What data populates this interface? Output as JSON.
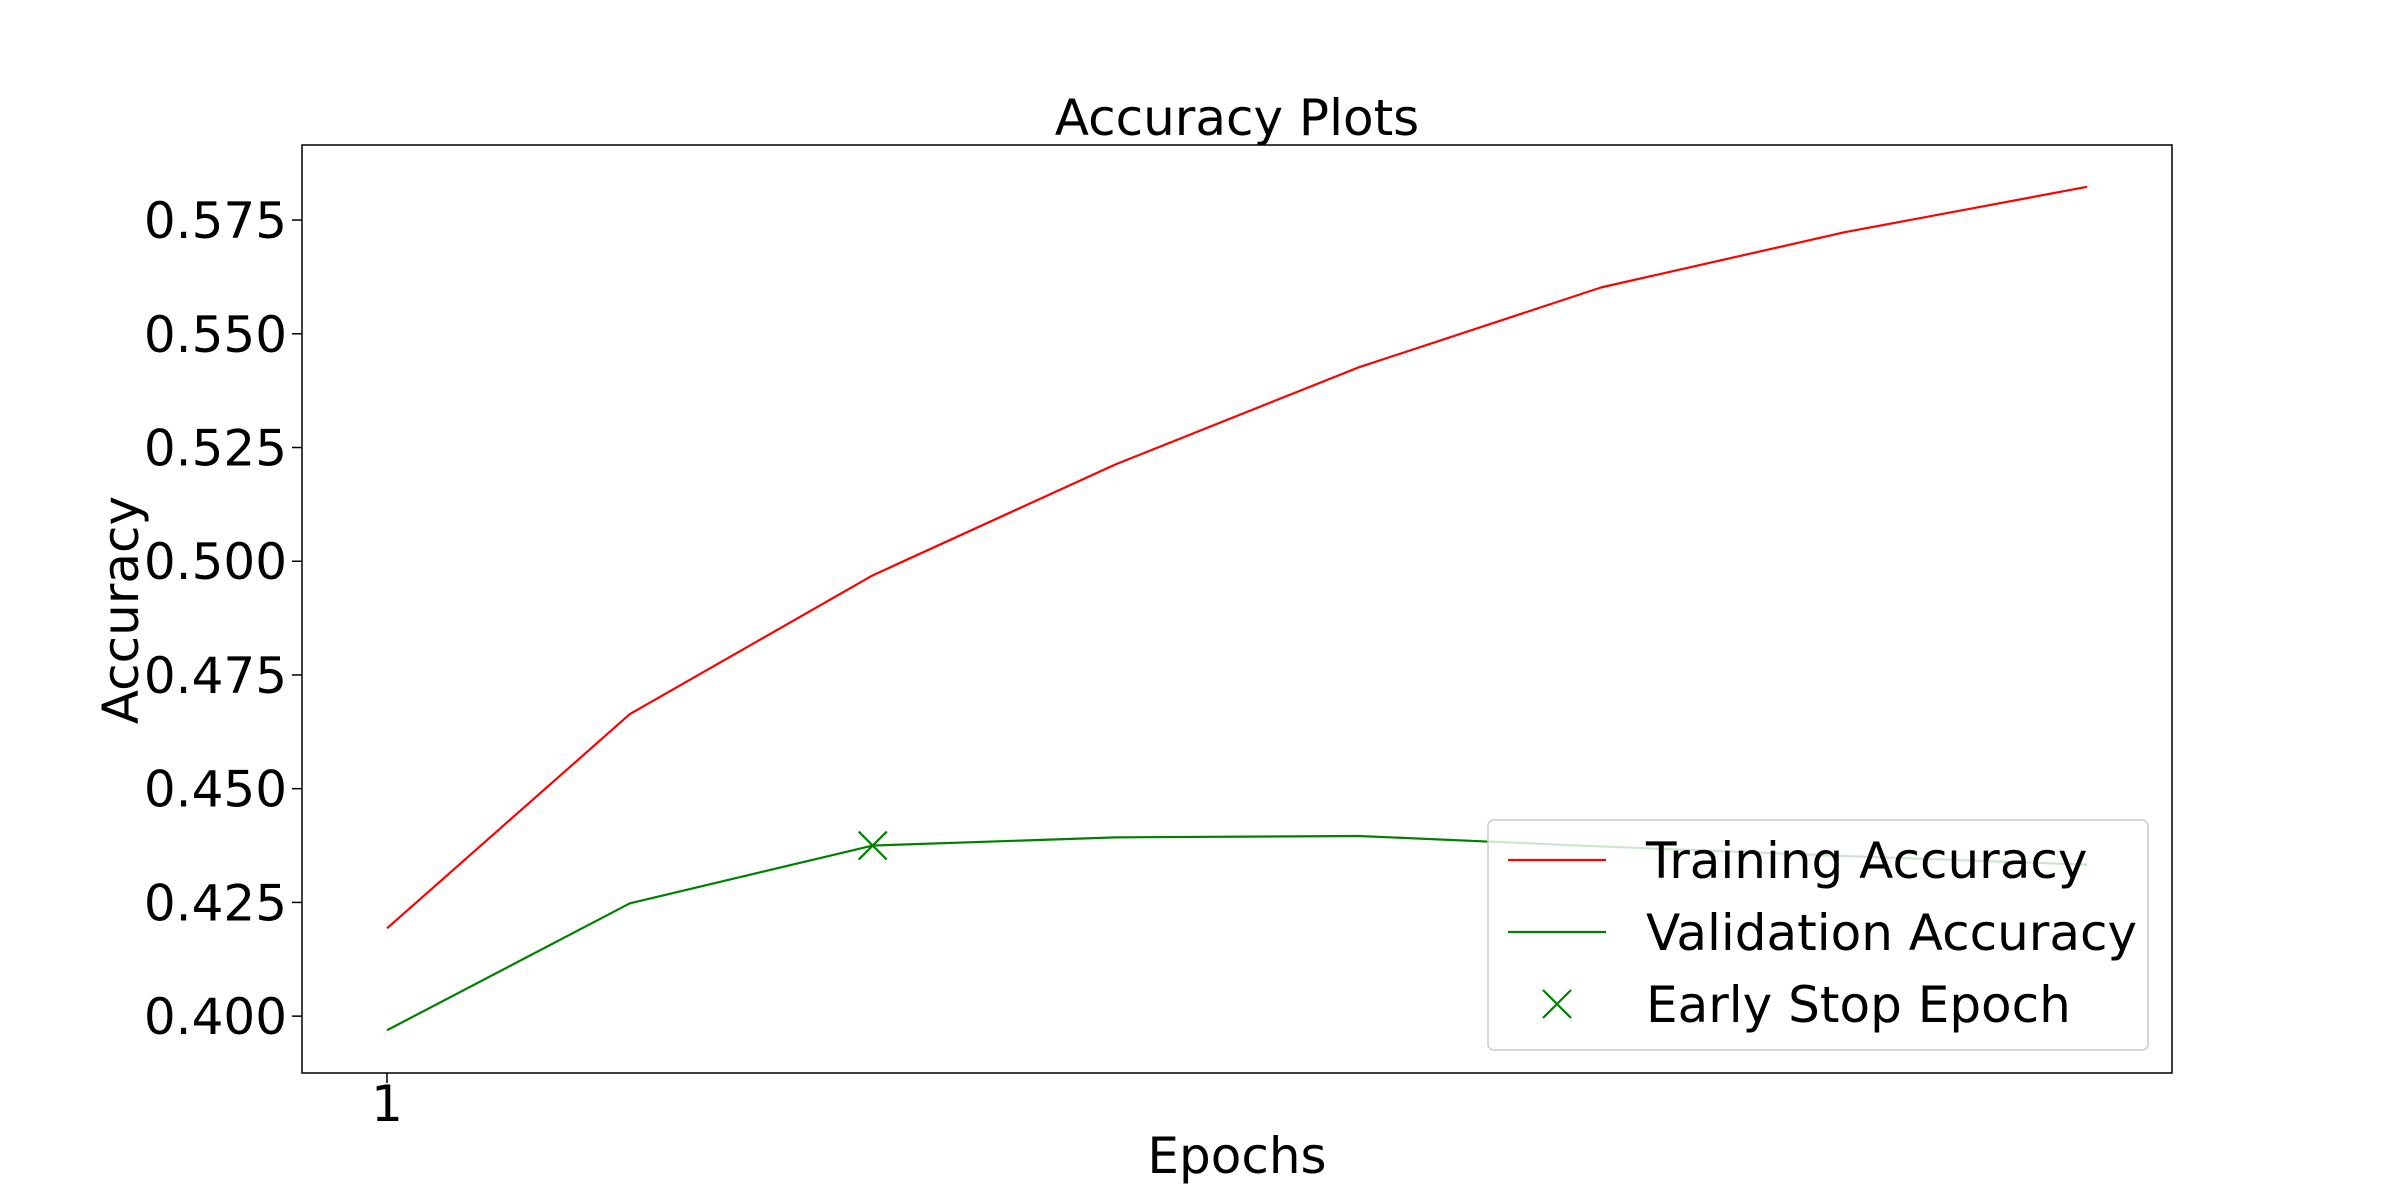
{
  "chart_data": {
    "type": "line",
    "title": "Accuracy Plots",
    "xlabel": "Epochs",
    "ylabel": "Accuracy",
    "x": [
      1,
      2,
      3,
      4,
      5,
      6,
      7,
      8
    ],
    "xticks": [
      1
    ],
    "xtick_labels": [
      "1"
    ],
    "xlim": [
      0.65,
      8.35
    ],
    "ylim": [
      0.3875,
      0.5915
    ],
    "yticks": [
      0.4,
      0.425,
      0.45,
      0.475,
      0.5,
      0.525,
      0.55,
      0.575
    ],
    "ytick_labels": [
      "0.400",
      "0.425",
      "0.450",
      "0.475",
      "0.500",
      "0.525",
      "0.550",
      "0.575"
    ],
    "grid": false,
    "legend_position": "lower-right",
    "series": [
      {
        "name": "Training Accuracy",
        "color": "#ff0000",
        "values": [
          0.4193,
          0.4664,
          0.4969,
          0.5213,
          0.5426,
          0.5602,
          0.5723,
          0.5823
        ]
      },
      {
        "name": "Validation Accuracy",
        "color": "#008000",
        "values": [
          0.3969,
          0.4248,
          0.4375,
          0.4393,
          0.4396,
          0.4373,
          0.4352,
          0.4333
        ]
      }
    ],
    "markers": [
      {
        "name": "Early Stop Epoch",
        "color": "#008000",
        "symbol": "x",
        "x": 3,
        "y": 0.4375
      }
    ]
  }
}
